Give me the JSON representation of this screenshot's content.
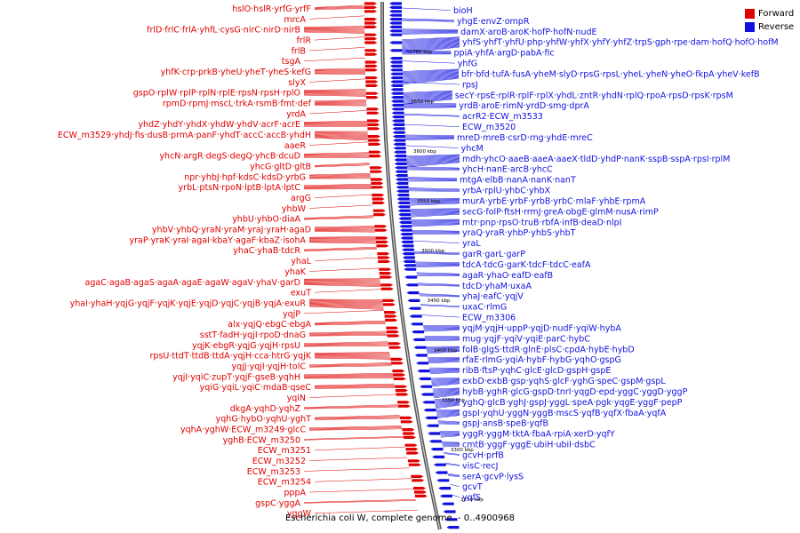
{
  "legend": {
    "forward": "Forward",
    "reverse": "Reverse"
  },
  "colors": {
    "forward": "#e00000",
    "reverse": "#1010e0",
    "axis": "#333333"
  },
  "caption": "Escherichia coli W, complete genome. - 0..4900968",
  "scale_labels": [
    "3700 kbp",
    "3650 kbp",
    "3600 kbp",
    "3550 kbp",
    "3500 kbp",
    "3450 kbp",
    "3400 kbp",
    "3350 kbp",
    "3300 kbp",
    "3250 kbp"
  ],
  "forward_labels": [
    "hslO·hslR·yrfG·yrfF",
    "mrcA",
    "frlD·frlC·frlA·yhfL·cysG·nirC·nirD·nirB",
    "frlR",
    "frlB",
    "tsgA",
    "yhfK·crp·prkB·yheU·yheT·yheS·kefG",
    "slyX",
    "gspO·rplW·rplP·rplN·rplE·rpsN·rpsH·rplO",
    "rpmD·rpmJ·mscL·trkA·rsmB·fmt·def",
    "yrdA",
    "yhdZ·yhdY·yhdX·yhdW·yhdV·acrF·acrE",
    "ECW_m3529·yhdJ·fis·dusB·prmA·panF·yhdT·accC·accB·yhdH",
    "aaeR",
    "yhcN·argR·degS·degQ·yhcB·dcuD",
    "yhcG·gltD·gltB",
    "npr·yhbJ·hpf·kdsC·kdsD·yrbG",
    "yrbL·ptsN·rpoN·lptB·lptA·lptC",
    "argG",
    "yhbW",
    "yhbU·yhbO·diaA",
    "yhbV·yhbQ·yraN·yraM·yraJ·yraH·agaD",
    "yraP·yraK·yraI·agaI·kbaY·agaF·kbaZ·isohA",
    "yhaC·yhaB·tdcR",
    "yhaL",
    "yhaK",
    "agaC·agaB·agaS·agaA·agaE·agaW·agaV·yhaV·garD",
    "exuT",
    "yhaI·yhaH·yqjG·yqjF·yqjK·yqjE·yqjD·yqjC·yqjB·yqjA·exuR",
    "yqjP",
    "alx·yqjQ·ebgC·ebgA",
    "sstT·fadH·yqjI·rpoD·dnaG",
    "yqjK·ebgR·yqjG·yqjH·rpsU",
    "rpsU·ttdT·ttdB·ttdA·yqjH·cca·htrG·yqjK",
    "yqjJ·yqjI·yqjH·tolC",
    "yqjI·yqiC·zupT·yqjF·gseB·yqhH",
    "yqiG·yqiL·yqiC·mdaB·qseC",
    "yqiN",
    "dkgA·yqhD·yqhZ",
    "yqhG·hybO·yqhU·yghT",
    "yqhA·yghW·ECW_m3249·glcC",
    "yghB·ECW_m3250",
    "ECW_m3251",
    "ECW_m3252",
    "ECW_m3253",
    "ECW_m3254",
    "pppA",
    "gspC·yggA",
    "yggW"
  ],
  "reverse_labels": [
    "bioH",
    "yhgE·envZ·ompR",
    "damX·aroB·aroK·hofP·hofN·nudE",
    "yhfS·yhfT·yhfU·php·yhfW·yhfX·yhfY·yhfZ·trpS·gph·rpe·dam·hofQ·hofO·hofM",
    "ppiA·yhfA·argD·pabA·fic",
    "yhfG",
    "bfr·bfd·tufA·fusA·yheM·slyD·rpsG·rpsL·yheL·yheN·yheO·fkpA·yheV·kefB",
    "rpsJ",
    "secY·rpsE·rplR·rplF·rplX·yhdL·zntR·yhdN·rplQ·rpoA·rpsD·rpsK·rpsM",
    "yrdB·aroE·rimN·yrdD·smg·dprA",
    "acrR2·ECW_m3533",
    "ECW_m3520",
    "mreD·mreB·csrD·rng·yhdE·mreC",
    "yhcM",
    "mdh·yhcO·aaeB·aaeA·aaeX·tldD·yhdP·nanK·sspB·sspA·rpsI·rplM",
    "yhcH·nanE·arcB·yhcC",
    "mtgA·elbB·nanA·nanK·nanT",
    "yrbA·rplU·yhbC·yhbX",
    "murA·yrbE·yrbF·yrbB·yrbC·mlaF·yhbE·rpmA",
    "secG·folP·ftsH·rrmJ·greA·obgE·glmM·nusA·rimP",
    "mtr·pnp·rpsO·truB·rbfA·infB·deaD·nlpI",
    "yraQ·yraR·yhbP·yhbS·yhbT",
    "yraL",
    "garR·garL·garP",
    "tdcA·tdcG·garK·tdcF·tdcC·eafA",
    "agaR·yhaO·eafD·eafB",
    "tdcD·yhaM·uxaA",
    "yhaJ·eafC·yqjV",
    "uxaC·rlmG",
    "ECW_m3306",
    "yqjM·yqjH·uppP·yqjD·nudF·yqiW·hybA",
    "mug·yqjF·yqiV·yqiE·parC·hybC",
    "folB·glgS·ttdR·glnE·plsC·cpdA·hybE·hybD",
    "rfaE·rlmG·yqiA·hybF·hybG·yqhO·gspG",
    "ribB·ftsP·yqhC·glcE·glcD·gspH·gspE",
    "exbD·exbB·gsp·yqhS·glcF·yghG·speC·gspM·gspL",
    "hybB·yghR·glcG·gspD·tnrI·yqgD·epd·yggC·yggD·yggP",
    "yghQ·glcB·yghJ·gspJ·yggL·speA·pgk·yqgE·yggF·pepP",
    "gspI·yqhU·yggN·yggB·mscS·yqfB·yqfX·fbaA·yqfA",
    "gspJ·ansB·speB·yqfB",
    "yggR·yggM·tktA·fbaA·rpiA·xerD·yqfY",
    "cmtB·yggF·yggE·ubiH·ubiI·dsbC",
    "gcvH·prfB",
    "visC·recJ",
    "serA·gcvP·lysS",
    "gcvT",
    "yqfS"
  ]
}
